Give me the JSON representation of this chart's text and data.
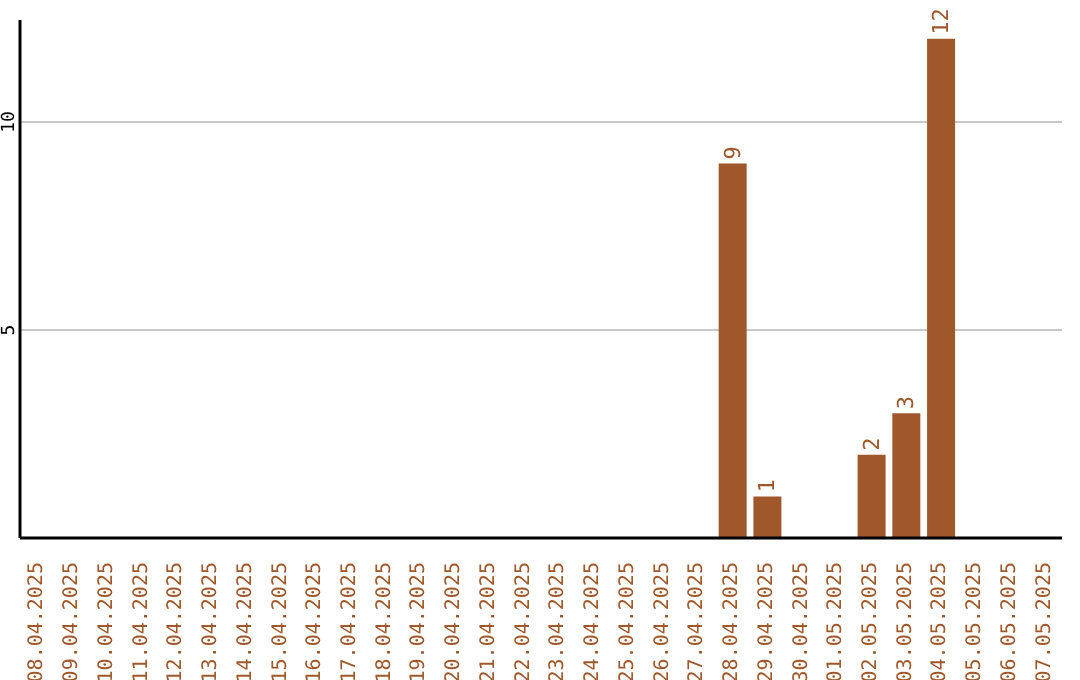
{
  "chart_data": {
    "type": "bar",
    "categories": [
      "08.04.2025",
      "09.04.2025",
      "10.04.2025",
      "11.04.2025",
      "12.04.2025",
      "13.04.2025",
      "14.04.2025",
      "15.04.2025",
      "16.04.2025",
      "17.04.2025",
      "18.04.2025",
      "19.04.2025",
      "20.04.2025",
      "21.04.2025",
      "22.04.2025",
      "23.04.2025",
      "24.04.2025",
      "25.04.2025",
      "26.04.2025",
      "27.04.2025",
      "28.04.2025",
      "29.04.2025",
      "30.04.2025",
      "01.05.2025",
      "02.05.2025",
      "03.05.2025",
      "04.05.2025",
      "05.05.2025",
      "06.05.2025",
      "07.05.2025"
    ],
    "values": [
      0,
      0,
      0,
      0,
      0,
      0,
      0,
      0,
      0,
      0,
      0,
      0,
      0,
      0,
      0,
      0,
      0,
      0,
      0,
      0,
      9,
      1,
      0,
      0,
      2,
      3,
      12,
      0,
      0,
      0
    ],
    "value_labels": [
      null,
      null,
      null,
      null,
      null,
      null,
      null,
      null,
      null,
      null,
      null,
      null,
      null,
      null,
      null,
      null,
      null,
      null,
      null,
      null,
      "9",
      "1",
      null,
      null,
      "2",
      "3",
      "12",
      null,
      null,
      null
    ],
    "color": "#a0582a",
    "ylim": [
      0,
      12.45
    ],
    "yticks": [
      5,
      10
    ],
    "grid": "y"
  }
}
